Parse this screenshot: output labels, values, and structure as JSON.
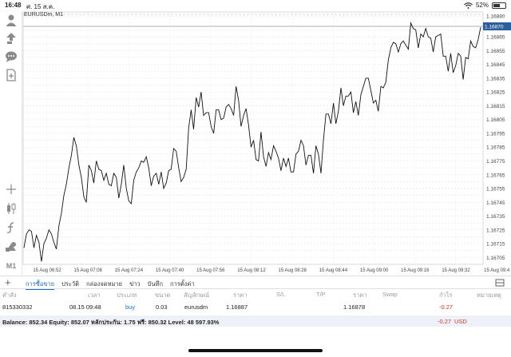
{
  "status_bar": {
    "time": "16:48",
    "date": "ศ. 15 ส.ค.",
    "battery": "52%",
    "battery_level": 0.52
  },
  "left_toolbar": {
    "items": [
      {
        "name": "account-icon"
      },
      {
        "name": "trade-icon"
      },
      {
        "name": "chat-icon"
      },
      {
        "name": "new-document-icon"
      },
      {
        "name": "crosshair-icon"
      },
      {
        "name": "candlestick-icon"
      },
      {
        "name": "indicator-icon"
      },
      {
        "name": "objects-icon"
      }
    ],
    "timeframe": "M1"
  },
  "chart": {
    "symbol_label": "EURUSDm, M1",
    "current_price_label": "1.16870"
  },
  "chart_data": {
    "type": "line",
    "title": "EURUSDm, M1",
    "xlabel": "",
    "ylabel": "",
    "x_ticks": [
      "15 Aug 06:52",
      "15 Aug 07:08",
      "15 Aug 07:24",
      "15 Aug 07:40",
      "15 Aug 07:56",
      "15 Aug 08:12",
      "15 Aug 08:28",
      "15 Aug 08:44",
      "15 Aug 09:00",
      "15 Aug 09:16",
      "15 Aug 09:32",
      "15 Aug 09:4"
    ],
    "y_ticks": [
      "1.16880",
      "1.16870",
      "1.16865",
      "1.16860",
      "1.16855",
      "1.16850",
      "1.16845",
      "1.16840",
      "1.16835",
      "1.16830",
      "1.16825",
      "1.16820",
      "1.16815",
      "1.16810",
      "1.16805",
      "1.16800",
      "1.16795",
      "1.16790",
      "1.16785",
      "1.16780",
      "1.16775",
      "1.16770",
      "1.16765",
      "1.16760",
      "1.16755",
      "1.16750",
      "1.16745",
      "1.16740",
      "1.16735",
      "1.16730",
      "1.16725",
      "1.16720",
      "1.16715",
      "1.16710",
      "1.16705"
    ],
    "ylim": [
      1.167,
      1.16883
    ],
    "grid": true,
    "current_price": 1.1687,
    "values": [
      1.16712,
      1.16722,
      1.16725,
      1.16724,
      1.16712,
      1.16721,
      1.16716,
      1.16702,
      1.16715,
      1.16719,
      1.16725,
      1.16722,
      1.16716,
      1.16711,
      1.16728,
      1.16737,
      1.1675,
      1.16758,
      1.1677,
      1.16779,
      1.16792,
      1.16786,
      1.16772,
      1.16763,
      1.16749,
      1.16745,
      1.16772,
      1.16768,
      1.16759,
      1.16775,
      1.16769,
      1.16768,
      1.16761,
      1.16766,
      1.16758,
      1.16757,
      1.16766,
      1.16763,
      1.16748,
      1.16758,
      1.16772,
      1.16755,
      1.16746,
      1.16744,
      1.16761,
      1.16767,
      1.1677,
      1.16775,
      1.16774,
      1.16778,
      1.1677,
      1.16757,
      1.16764,
      1.16766,
      1.16758,
      1.16767,
      1.16755,
      1.16759,
      1.16768,
      1.16769,
      1.16784,
      1.16782,
      1.1677,
      1.1676,
      1.16763,
      1.16769,
      1.16799,
      1.16812,
      1.16798,
      1.16821,
      1.16814,
      1.16825,
      1.16808,
      1.1681,
      1.1681,
      1.168,
      1.16795,
      1.16812,
      1.16812,
      1.16805,
      1.16806,
      1.16814,
      1.16816,
      1.16813,
      1.16808,
      1.16829,
      1.16819,
      1.168,
      1.16808,
      1.16813,
      1.16801,
      1.16785,
      1.1679,
      1.16776,
      1.16775,
      1.16796,
      1.16778,
      1.16771,
      1.16781,
      1.16776,
      1.16786,
      1.16782,
      1.16777,
      1.16768,
      1.16777,
      1.16771,
      1.16777,
      1.16767,
      1.16767,
      1.1678,
      1.16782,
      1.1679,
      1.16786,
      1.16772,
      1.16779,
      1.16779,
      1.16766,
      1.16786,
      1.1678,
      1.16766,
      1.1679,
      1.16809,
      1.16809,
      1.16802,
      1.16817,
      1.16802,
      1.16811,
      1.16828,
      1.16815,
      1.16822,
      1.16822,
      1.16825,
      1.1681,
      1.16818,
      1.16808,
      1.16823,
      1.16829,
      1.16835,
      1.16835,
      1.16826,
      1.16817,
      1.16819,
      1.16811,
      1.16829,
      1.16828,
      1.16832,
      1.16848,
      1.16857,
      1.16861,
      1.1686,
      1.16854,
      1.1686,
      1.16862,
      1.16859,
      1.16856,
      1.16875,
      1.16871,
      1.1687,
      1.16857,
      1.16867,
      1.16865,
      1.16871,
      1.16865,
      1.16864,
      1.16854,
      1.16865,
      1.16866,
      1.16867,
      1.16851,
      1.16851,
      1.1684,
      1.16853,
      1.16839,
      1.16844,
      1.16853,
      1.16851,
      1.16834,
      1.1685,
      1.16849,
      1.16862,
      1.16858,
      1.16857,
      1.16863,
      1.16872
    ]
  },
  "tabs": {
    "items": [
      "การซื้อขาย",
      "ประวัติ",
      "กล่องจดหมาย",
      "ข่าว",
      "บันทึก",
      "การตั้งค่า"
    ],
    "active_index": 0
  },
  "table": {
    "headers": {
      "order": "คำสั่ง",
      "time": "เวลา",
      "type": "ประเภท",
      "volume": "ขนาด",
      "symbol": "สัญลักษณ์",
      "price": "ราคา",
      "sl": "S/L",
      "tp": "T/P",
      "current_price": "ราคา",
      "swap": "Swap",
      "profit": "กำไร",
      "comment": "หมายเหตุ"
    },
    "row": {
      "order": "815330332",
      "time": "08.15 09:48",
      "type": "buy",
      "volume": "0.03",
      "symbol": "eurusdm",
      "price": "1.16887",
      "sl": "",
      "tp": "",
      "current_price": "1.16878",
      "swap": "",
      "profit": "-0.27",
      "comment": ""
    }
  },
  "balance_bar": {
    "text": "Balance: 852.34 Equity: 852.07 หลักประกัน: 1.75 ฟรี: 850.32 Level: 48 597.93%",
    "profit": "-0.27",
    "currency": "USD"
  },
  "colors": {
    "accent": "#1a6fc9",
    "loss": "#d9342b",
    "price_tag": "#2d5f9a",
    "balance_bg": "#eef2f8"
  }
}
